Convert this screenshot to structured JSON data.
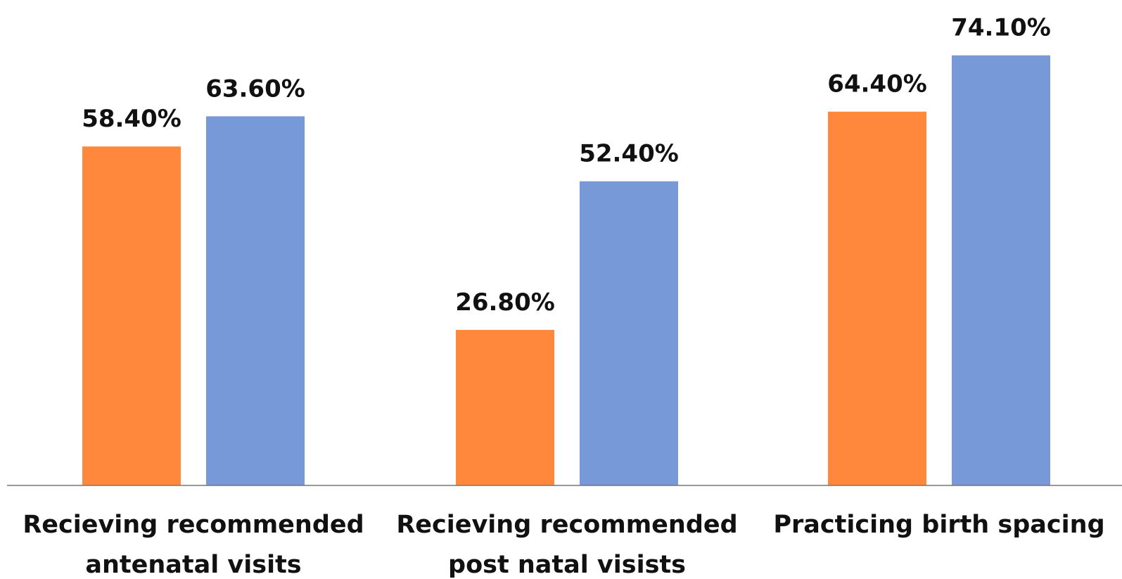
{
  "chart_data": {
    "type": "bar",
    "categories": [
      [
        "Recieving recommended",
        "antenatal visits"
      ],
      [
        "Recieving recommended",
        "post natal visists"
      ],
      [
        "Practicing birth spacing"
      ]
    ],
    "series": [
      {
        "color": "#FF883C",
        "values": [
          58.4,
          26.8,
          64.4
        ],
        "labels": [
          "58.40%",
          "26.80%",
          "64.40%"
        ]
      },
      {
        "color": "#7799D8",
        "values": [
          63.6,
          52.4,
          74.1
        ],
        "labels": [
          "63.60%",
          "52.40%",
          "74.10%"
        ]
      }
    ],
    "legend": "none",
    "grid": false,
    "ylim": [
      0,
      100
    ],
    "axis_color": "#777777"
  }
}
